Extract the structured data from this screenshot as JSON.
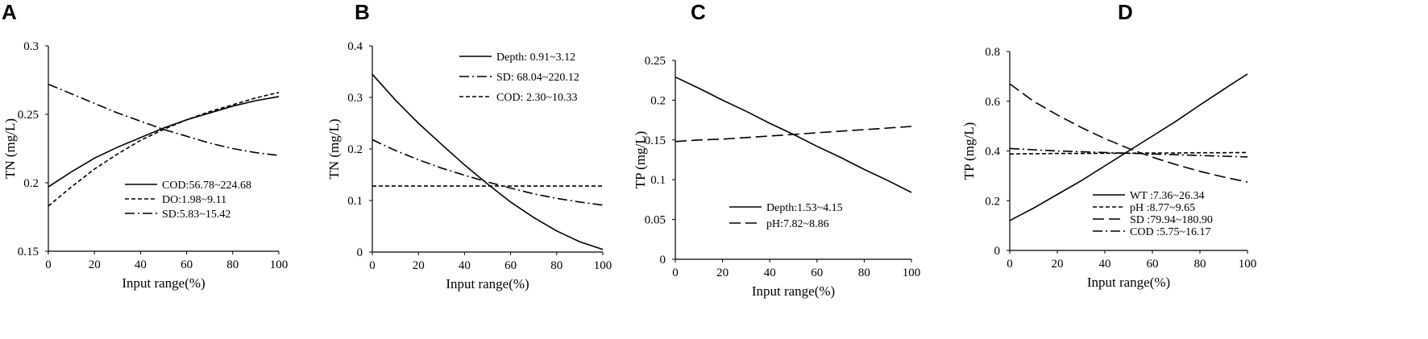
{
  "figure": {
    "panel_letters": [
      "A",
      "B",
      "C",
      "D"
    ]
  },
  "chart_data": [
    {
      "type": "line",
      "panel": "A",
      "xlabel": "Input range(%)",
      "ylabel": "TN (mg/L)",
      "xlim": [
        0,
        100
      ],
      "ylim": [
        0.15,
        0.3
      ],
      "xticks": [
        "0",
        "20",
        "40",
        "60",
        "80",
        "100"
      ],
      "yticks": [
        "0.15",
        "0.2",
        "0.25",
        "0.3"
      ],
      "x": [
        0,
        10,
        20,
        30,
        40,
        50,
        60,
        70,
        80,
        90,
        100
      ],
      "series": [
        {
          "name": "COD:56.78~224.68",
          "dash": "solid",
          "values": [
            0.197,
            0.208,
            0.218,
            0.226,
            0.233,
            0.24,
            0.246,
            0.251,
            0.256,
            0.26,
            0.263
          ]
        },
        {
          "name": "DO:1.98~9.11",
          "dash": "dash",
          "values": [
            0.183,
            0.197,
            0.21,
            0.221,
            0.231,
            0.239,
            0.246,
            0.252,
            0.257,
            0.262,
            0.266
          ]
        },
        {
          "name": "SD:5.83~15.42",
          "dash": "dashdot",
          "values": [
            0.272,
            0.265,
            0.258,
            0.251,
            0.245,
            0.239,
            0.234,
            0.229,
            0.225,
            0.222,
            0.22
          ]
        }
      ]
    },
    {
      "type": "line",
      "panel": "B",
      "xlabel": "Input range(%)",
      "ylabel": "TN (mg/L)",
      "xlim": [
        0,
        100
      ],
      "ylim": [
        0,
        0.4
      ],
      "xticks": [
        "0",
        "20",
        "40",
        "60",
        "80",
        "100"
      ],
      "yticks": [
        "0",
        "0.1",
        "0.2",
        "0.3",
        "0.4"
      ],
      "x": [
        0,
        10,
        20,
        30,
        40,
        50,
        60,
        70,
        80,
        90,
        100
      ],
      "series": [
        {
          "name": "Depth: 0.91~3.12",
          "dash": "solid",
          "values": [
            0.345,
            0.295,
            0.25,
            0.209,
            0.169,
            0.132,
            0.097,
            0.067,
            0.041,
            0.02,
            0.005
          ]
        },
        {
          "name": "SD: 68.04~220.12",
          "dash": "dashdot",
          "values": [
            0.218,
            0.197,
            0.179,
            0.163,
            0.149,
            0.136,
            0.124,
            0.113,
            0.104,
            0.097,
            0.091
          ]
        },
        {
          "name": "COD: 2.30~10.33",
          "dash": "dash",
          "values": [
            0.128,
            0.128,
            0.128,
            0.128,
            0.128,
            0.128,
            0.128,
            0.128,
            0.128,
            0.128,
            0.128
          ]
        }
      ]
    },
    {
      "type": "line",
      "panel": "C",
      "xlabel": "Input range(%)",
      "ylabel": "TP (mg/L)",
      "xlim": [
        0,
        100
      ],
      "ylim": [
        0,
        0.25
      ],
      "xticks": [
        "0",
        "20",
        "40",
        "60",
        "80",
        "100"
      ],
      "yticks": [
        "0",
        "0.05",
        "0.1",
        "0.15",
        "0.2",
        "0.25"
      ],
      "x": [
        0,
        10,
        20,
        30,
        40,
        50,
        60,
        70,
        80,
        90,
        100
      ],
      "series": [
        {
          "name": "Depth:1.53~4.15",
          "dash": "solid",
          "values": [
            0.229,
            0.215,
            0.2,
            0.186,
            0.171,
            0.157,
            0.142,
            0.128,
            0.113,
            0.099,
            0.084
          ]
        },
        {
          "name": "pH:7.82~8.86",
          "dash": "longdash",
          "values": [
            0.148,
            0.15,
            0.151,
            0.153,
            0.155,
            0.157,
            0.159,
            0.161,
            0.163,
            0.165,
            0.167
          ]
        }
      ]
    },
    {
      "type": "line",
      "panel": "D",
      "xlabel": "Input range(%)",
      "ylabel": "TP (mg/L)",
      "xlim": [
        0,
        100
      ],
      "ylim": [
        0,
        0.8
      ],
      "xticks": [
        "0",
        "20",
        "40",
        "60",
        "80",
        "100"
      ],
      "yticks": [
        "0",
        "0.2",
        "0.4",
        "0.6",
        "0.8"
      ],
      "x": [
        0,
        10,
        20,
        30,
        40,
        50,
        60,
        70,
        80,
        90,
        100
      ],
      "series": [
        {
          "name": "WT :7.36~26.34",
          "dash": "solid",
          "values": [
            0.12,
            0.17,
            0.225,
            0.28,
            0.34,
            0.4,
            0.46,
            0.52,
            0.585,
            0.648,
            0.71
          ]
        },
        {
          "name": "pH :8.77~9.65",
          "dash": "dash",
          "values": [
            0.388,
            0.389,
            0.39,
            0.39,
            0.391,
            0.391,
            0.392,
            0.392,
            0.393,
            0.393,
            0.394
          ]
        },
        {
          "name": "SD :79.94~180.90",
          "dash": "longdash",
          "values": [
            0.67,
            0.6,
            0.545,
            0.495,
            0.45,
            0.41,
            0.375,
            0.345,
            0.318,
            0.295,
            0.275
          ]
        },
        {
          "name": "COD :5.75~16.17",
          "dash": "dashdot",
          "values": [
            0.41,
            0.405,
            0.4,
            0.397,
            0.394,
            0.391,
            0.388,
            0.385,
            0.382,
            0.379,
            0.376
          ]
        }
      ]
    }
  ]
}
